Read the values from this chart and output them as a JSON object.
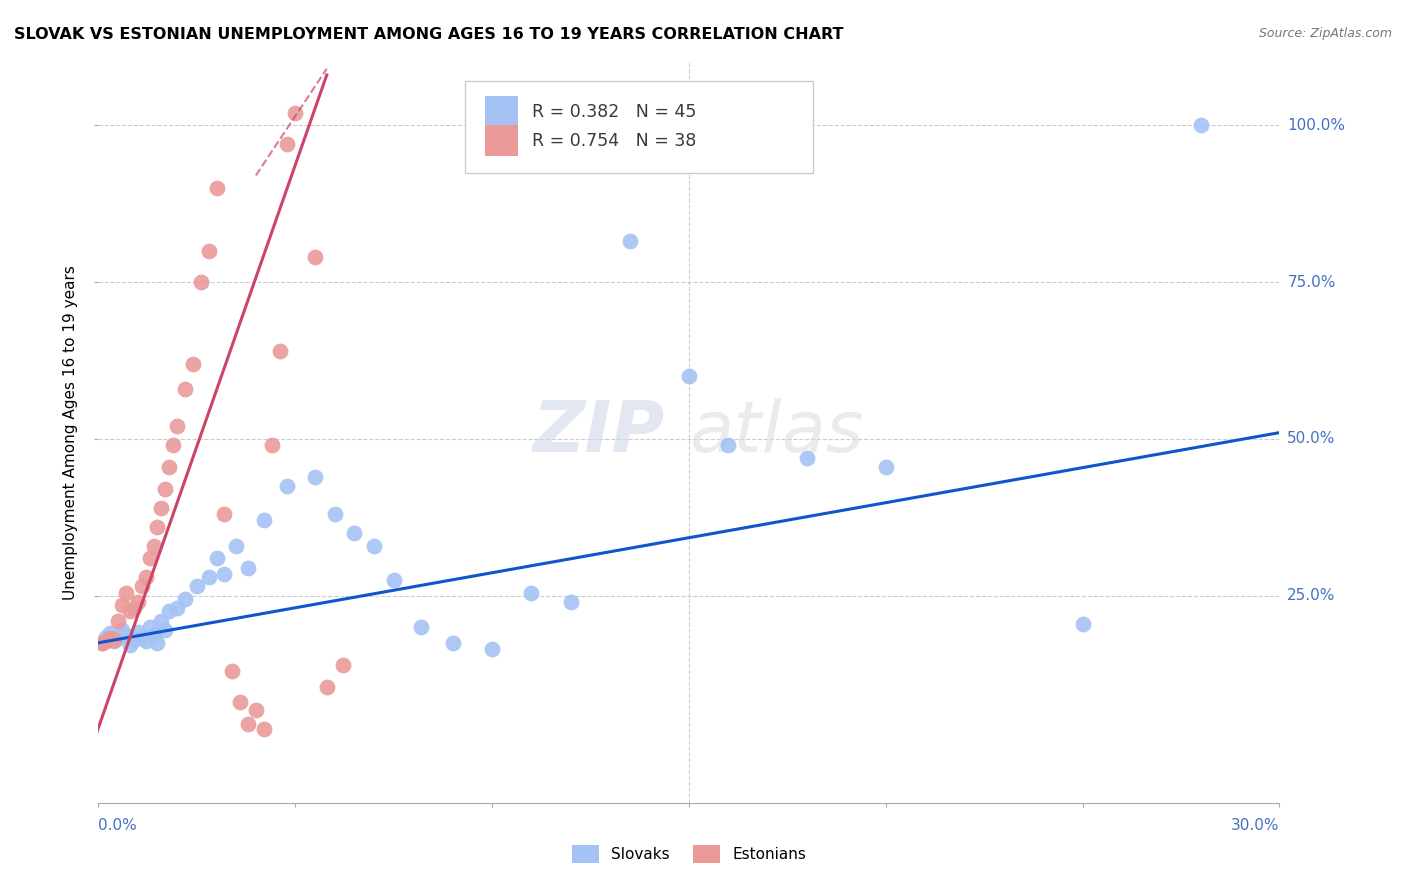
{
  "title": "SLOVAK VS ESTONIAN UNEMPLOYMENT AMONG AGES 16 TO 19 YEARS CORRELATION CHART",
  "source": "Source: ZipAtlas.com",
  "ylabel": "Unemployment Among Ages 16 to 19 years",
  "ytick_labels": [
    "100.0%",
    "75.0%",
    "50.0%",
    "25.0%"
  ],
  "ytick_values": [
    1.0,
    0.75,
    0.5,
    0.25
  ],
  "xlim": [
    0.0,
    0.3
  ],
  "ylim": [
    -0.08,
    1.1
  ],
  "legend_blue_r": "R = 0.382",
  "legend_blue_n": "N = 45",
  "legend_pink_r": "R = 0.754",
  "legend_pink_n": "N = 38",
  "blue_color": "#a4c2f4",
  "pink_color": "#ea9999",
  "trendline_blue": "#1155cc",
  "trendline_pink": "#cc4466",
  "watermark_zip": "ZIP",
  "watermark_atlas": "atlas",
  "blue_scatter_x": [
    0.001,
    0.002,
    0.003,
    0.004,
    0.005,
    0.006,
    0.007,
    0.008,
    0.009,
    0.01,
    0.011,
    0.012,
    0.013,
    0.014,
    0.015,
    0.016,
    0.017,
    0.018,
    0.02,
    0.022,
    0.025,
    0.028,
    0.03,
    0.032,
    0.035,
    0.038,
    0.042,
    0.048,
    0.055,
    0.06,
    0.065,
    0.07,
    0.075,
    0.082,
    0.09,
    0.1,
    0.11,
    0.12,
    0.135,
    0.15,
    0.16,
    0.18,
    0.2,
    0.25,
    0.28
  ],
  "blue_scatter_y": [
    0.175,
    0.185,
    0.19,
    0.178,
    0.182,
    0.195,
    0.188,
    0.172,
    0.18,
    0.192,
    0.185,
    0.178,
    0.2,
    0.188,
    0.175,
    0.21,
    0.195,
    0.225,
    0.23,
    0.245,
    0.265,
    0.28,
    0.31,
    0.285,
    0.33,
    0.295,
    0.37,
    0.425,
    0.44,
    0.38,
    0.35,
    0.33,
    0.275,
    0.2,
    0.175,
    0.165,
    0.255,
    0.24,
    0.815,
    0.6,
    0.49,
    0.47,
    0.455,
    0.205,
    1.0
  ],
  "pink_scatter_x": [
    0.001,
    0.002,
    0.003,
    0.004,
    0.005,
    0.006,
    0.007,
    0.008,
    0.009,
    0.01,
    0.011,
    0.012,
    0.013,
    0.014,
    0.015,
    0.016,
    0.017,
    0.018,
    0.019,
    0.02,
    0.022,
    0.024,
    0.026,
    0.028,
    0.03,
    0.032,
    0.034,
    0.036,
    0.038,
    0.04,
    0.042,
    0.044,
    0.046,
    0.048,
    0.05,
    0.055,
    0.058,
    0.062
  ],
  "pink_scatter_y": [
    0.175,
    0.178,
    0.182,
    0.18,
    0.21,
    0.235,
    0.255,
    0.225,
    0.23,
    0.24,
    0.265,
    0.28,
    0.31,
    0.33,
    0.36,
    0.39,
    0.42,
    0.455,
    0.49,
    0.52,
    0.58,
    0.62,
    0.75,
    0.8,
    0.9,
    0.38,
    0.13,
    0.08,
    0.045,
    0.068,
    0.038,
    0.49,
    0.64,
    0.97,
    1.02,
    0.79,
    0.105,
    0.14
  ],
  "blue_trend_x": [
    0.0,
    0.3
  ],
  "blue_trend_y": [
    0.175,
    0.51
  ],
  "pink_trend_x": [
    -0.005,
    0.058
  ],
  "pink_trend_y": [
    -0.05,
    1.08
  ]
}
